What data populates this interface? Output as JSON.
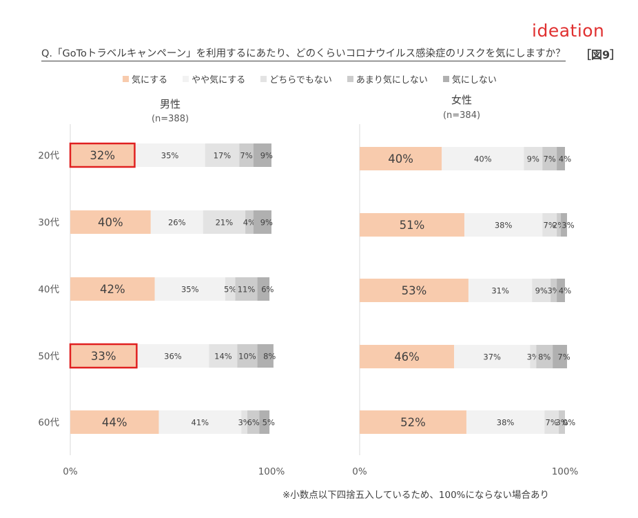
{
  "logo": "ideation",
  "question": "Q.「GoToトラベルキャンペーン」を利用するにあたり、どのくらいコロナウイルス感染症のリスクを気にしますか？",
  "figure_label": "［図9］",
  "legend": [
    {
      "label": "気にする",
      "color": "#f8cbad"
    },
    {
      "label": "やや気にする",
      "color": "#f2f2f2"
    },
    {
      "label": "どちらでもない",
      "color": "#e3e3e3"
    },
    {
      "label": "あまり気にしない",
      "color": "#cccccc"
    },
    {
      "label": "気にしない",
      "color": "#b0b0b0"
    }
  ],
  "footnote": "※小数点以下四捨五入しているため、100%にならない場合あり",
  "chart_data": [
    {
      "type": "bar",
      "stacked": true,
      "orientation": "horizontal",
      "title": "男性",
      "subtitle": "(n=388)",
      "categories": [
        "20代",
        "30代",
        "40代",
        "50代",
        "60代"
      ],
      "series": [
        {
          "name": "気にする",
          "values": [
            32,
            40,
            42,
            33,
            44
          ]
        },
        {
          "name": "やや気にする",
          "values": [
            35,
            26,
            35,
            36,
            41
          ]
        },
        {
          "name": "どちらでもない",
          "values": [
            17,
            21,
            5,
            14,
            3
          ]
        },
        {
          "name": "あまり気にしない",
          "values": [
            7,
            4,
            11,
            10,
            6
          ]
        },
        {
          "name": "気にしない",
          "values": [
            9,
            9,
            6,
            8,
            5
          ]
        }
      ],
      "highlighted": [
        {
          "category": "20代",
          "series": "気にする"
        },
        {
          "category": "50代",
          "series": "気にする"
        }
      ],
      "xlim": [
        0,
        100
      ],
      "x_tick_labels": [
        "0%",
        "100%"
      ]
    },
    {
      "type": "bar",
      "stacked": true,
      "orientation": "horizontal",
      "title": "女性",
      "subtitle": "(n=384)",
      "categories": [
        "20代",
        "30代",
        "40代",
        "50代",
        "60代"
      ],
      "series": [
        {
          "name": "気にする",
          "values": [
            40,
            51,
            53,
            46,
            52
          ]
        },
        {
          "name": "やや気にする",
          "values": [
            40,
            38,
            31,
            37,
            38
          ]
        },
        {
          "name": "どちらでもない",
          "values": [
            9,
            7,
            9,
            3,
            7
          ]
        },
        {
          "name": "あまり気にしない",
          "values": [
            7,
            2,
            3,
            8,
            3
          ]
        },
        {
          "name": "気にしない",
          "values": [
            4,
            3,
            4,
            7,
            0
          ]
        }
      ],
      "xlim": [
        0,
        100
      ],
      "x_tick_labels": [
        "0%",
        "100%"
      ]
    }
  ]
}
